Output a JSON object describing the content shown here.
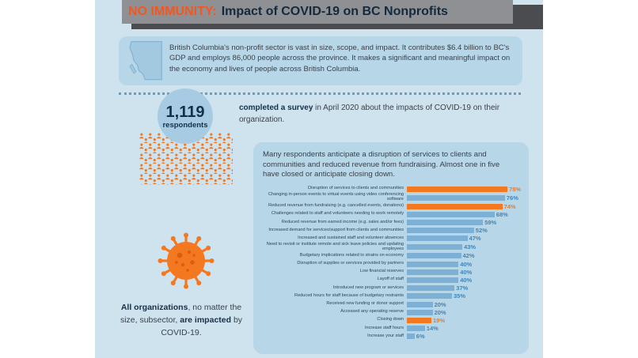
{
  "colors": {
    "accent_orange": "#f4781f",
    "bar_blue": "#7cb1d5",
    "value_blue": "#3e86b8",
    "panel_blue": "#b7d6e8",
    "background_blue": "#cfe3ee",
    "header_gray": "#8e9094",
    "header_shadow_gray": "#4b4c4f",
    "dark_navy": "#14314a"
  },
  "header": {
    "title_highlight": "NO IMMUNITY:",
    "title_rest": "Impact of COVID-19 on BC Nonprofits"
  },
  "intro": {
    "text": "British Columbia's non-profit sector is vast in size, scope, and impact. It contributes $6.4 billion to BC's GDP and employs 86,000 people across the province. It makes a significant and meaningful impact on the economy and lives of people across British Columbia.",
    "map_icon": "bc-map-icon"
  },
  "survey": {
    "count": "1,119",
    "count_label": "respondents",
    "text_bold": "completed a survey",
    "text_rest": " in April 2020 about the impacts of COVID-19 on their organization.",
    "crowd_icon": "crowd-pattern-icon"
  },
  "impact_note": {
    "bold_1": "All organizations",
    "text_1": ", no matter the size, subsector, ",
    "bold_2": "are impacted",
    "text_2": " by COVID-19.",
    "virus_icon": "coronavirus-icon"
  },
  "chart_panel": {
    "intro": "Many respondents anticipate a disruption of services to clients and communities and reduced revenue from fundraising. Almost one in five have closed or anticipate closing down."
  },
  "chart_data": {
    "type": "bar",
    "orientation": "horizontal",
    "title": "",
    "xlabel": "",
    "ylabel": "",
    "xlim": [
      0,
      80
    ],
    "grid": false,
    "legend": false,
    "value_suffix": "%",
    "bar_color": "#7cb1d5",
    "highlight_color": "#f4781f",
    "value_color": "#3e86b8",
    "rows": [
      {
        "label": "Disruption of services to clients and communities",
        "value": 78,
        "highlight": true
      },
      {
        "label": "Changing in-person events to virtual events using video conferencing software",
        "value": 76,
        "highlight": false
      },
      {
        "label": "Reduced revenue from fundraising (e.g. cancelled events, donations)",
        "value": 74,
        "highlight": true
      },
      {
        "label": "Challenges related to staff and volunteers needing to work remotely",
        "value": 68,
        "highlight": false
      },
      {
        "label": "Reduced revenue from earned income (e.g. sales and/or fees)",
        "value": 59,
        "highlight": false
      },
      {
        "label": "Increased demand for services/support from clients and communities",
        "value": 52,
        "highlight": false
      },
      {
        "label": "Increased and sustained staff and volunteer absences",
        "value": 47,
        "highlight": false
      },
      {
        "label": "Need to revisit or institute remote and sick leave policies and updating employees",
        "value": 43,
        "highlight": false
      },
      {
        "label": "Budgetary implications related to strains on economy",
        "value": 42,
        "highlight": false
      },
      {
        "label": "Disruption of supplies or services provided by partners",
        "value": 40,
        "highlight": false
      },
      {
        "label": "Low financial reserves",
        "value": 40,
        "highlight": false
      },
      {
        "label": "Layoff of staff",
        "value": 40,
        "highlight": false
      },
      {
        "label": "Introduced new program or services",
        "value": 37,
        "highlight": false
      },
      {
        "label": "Reduced hours for staff because of budgetary restraints",
        "value": 35,
        "highlight": false
      },
      {
        "label": "Received new funding or donor support",
        "value": 20,
        "highlight": false
      },
      {
        "label": "Accessed any operating reserve",
        "value": 20,
        "highlight": false
      },
      {
        "label": "Closing down",
        "value": 19,
        "highlight": true
      },
      {
        "label": "Increase staff hours",
        "value": 14,
        "highlight": false
      },
      {
        "label": "Increase your staff",
        "value": 6,
        "highlight": false
      }
    ]
  }
}
